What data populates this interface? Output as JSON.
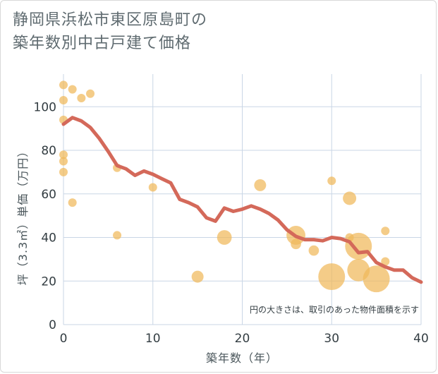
{
  "chart_data": {
    "type": "scatter",
    "title_lines": [
      "静岡県浜松市東区原島町の",
      "築年数別中古戸建て価格"
    ],
    "xlabel": "築年数（年）",
    "ylabel": "坪（3.3㎡）単価（万円）",
    "xlim": [
      0,
      40
    ],
    "ylim": [
      0,
      115
    ],
    "x_ticks": [
      0,
      10,
      20,
      30,
      40
    ],
    "y_ticks": [
      0,
      20,
      40,
      60,
      80,
      100
    ],
    "grid": true,
    "note": "円の大きさは、取引のあった物件面積を示す",
    "colors": {
      "bubble": "#f0b95a",
      "line": "#d4695a",
      "grid": "#c9d6e6"
    },
    "points": [
      {
        "x": 0,
        "y": 110,
        "size": 1
      },
      {
        "x": 0,
        "y": 103,
        "size": 1
      },
      {
        "x": 0,
        "y": 94,
        "size": 1
      },
      {
        "x": 0,
        "y": 78,
        "size": 1
      },
      {
        "x": 0,
        "y": 75,
        "size": 1
      },
      {
        "x": 0,
        "y": 70,
        "size": 1
      },
      {
        "x": 1,
        "y": 108,
        "size": 1
      },
      {
        "x": 1,
        "y": 56,
        "size": 1
      },
      {
        "x": 2,
        "y": 104,
        "size": 1
      },
      {
        "x": 3,
        "y": 106,
        "size": 1
      },
      {
        "x": 6,
        "y": 72,
        "size": 1
      },
      {
        "x": 6,
        "y": 41,
        "size": 1
      },
      {
        "x": 10,
        "y": 63,
        "size": 1
      },
      {
        "x": 15,
        "y": 22,
        "size": 2
      },
      {
        "x": 18,
        "y": 40,
        "size": 3
      },
      {
        "x": 22,
        "y": 64,
        "size": 2
      },
      {
        "x": 26,
        "y": 41,
        "size": 5
      },
      {
        "x": 26,
        "y": 37,
        "size": 1.5
      },
      {
        "x": 28,
        "y": 34,
        "size": 1.5
      },
      {
        "x": 30,
        "y": 66,
        "size": 1
      },
      {
        "x": 30,
        "y": 22,
        "size": 10
      },
      {
        "x": 32,
        "y": 58,
        "size": 2.5
      },
      {
        "x": 32,
        "y": 40,
        "size": 1
      },
      {
        "x": 33,
        "y": 36,
        "size": 10
      },
      {
        "x": 33,
        "y": 25,
        "size": 7
      },
      {
        "x": 35,
        "y": 21,
        "size": 10
      },
      {
        "x": 36,
        "y": 43,
        "size": 1
      },
      {
        "x": 36,
        "y": 29,
        "size": 1
      }
    ],
    "trend": {
      "x": [
        0,
        1,
        2,
        3,
        4,
        5,
        6,
        7,
        8,
        9,
        10,
        11,
        12,
        13,
        14,
        15,
        16,
        17,
        18,
        19,
        20,
        21,
        22,
        23,
        24,
        25,
        26,
        27,
        28,
        29,
        30,
        31,
        32,
        33,
        34,
        35,
        36,
        37,
        38,
        39,
        40
      ],
      "y": [
        92,
        95,
        93.5,
        90.5,
        85.5,
        79.5,
        73,
        71.5,
        68.5,
        70.5,
        69,
        67,
        65,
        57.5,
        56,
        54,
        49,
        47.5,
        53.5,
        52,
        53,
        54.5,
        53,
        51,
        48,
        43.5,
        40.5,
        39,
        39,
        38.5,
        40,
        39.5,
        38,
        33,
        33.5,
        28.5,
        26.5,
        25,
        25,
        21.5,
        19.5
      ]
    }
  }
}
